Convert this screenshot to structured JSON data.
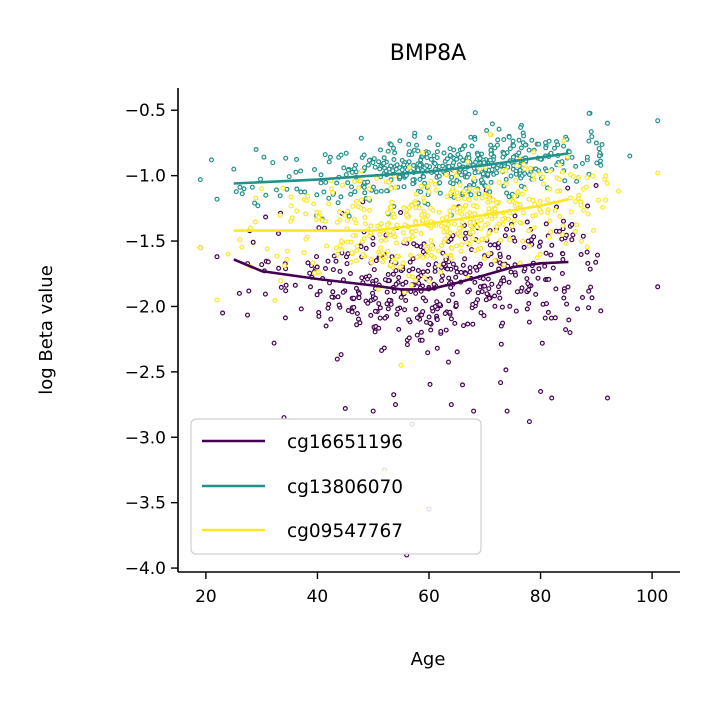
{
  "chart_data": {
    "type": "scatter",
    "title": "BMP8A",
    "xlabel": "Age",
    "ylabel": "log Beta value",
    "xlim": [
      15,
      105
    ],
    "ylim": [
      -4.03,
      -0.33
    ],
    "xticks": [
      20,
      40,
      60,
      80,
      100
    ],
    "xtick_labels": [
      "20",
      "40",
      "60",
      "80",
      "100"
    ],
    "yticks": [
      -4.0,
      -3.5,
      -3.0,
      -2.5,
      -2.0,
      -1.5,
      -1.0,
      -0.5
    ],
    "ytick_labels": [
      "−4.0",
      "−3.5",
      "−3.0",
      "−2.5",
      "−2.0",
      "−1.5",
      "−1.0",
      "−0.5"
    ],
    "grid": false,
    "legend_position": "lower-left",
    "series": [
      {
        "name": "cg16651196",
        "color": "#440154",
        "trend": [
          [
            25,
            -1.64
          ],
          [
            30,
            -1.73
          ],
          [
            40,
            -1.79
          ],
          [
            50,
            -1.84
          ],
          [
            55,
            -1.87
          ],
          [
            60,
            -1.87
          ],
          [
            65,
            -1.82
          ],
          [
            70,
            -1.76
          ],
          [
            75,
            -1.7
          ],
          [
            80,
            -1.67
          ],
          [
            85,
            -1.66
          ]
        ],
        "cloud": {
          "age_mean": 63,
          "age_sd": 14,
          "resid_sd": 0.27,
          "n": 480,
          "seed": 11
        }
      },
      {
        "name": "cg13806070",
        "color": "#21918c",
        "trend": [
          [
            25,
            -1.06
          ],
          [
            40,
            -1.03
          ],
          [
            50,
            -1.0
          ],
          [
            60,
            -0.97
          ],
          [
            70,
            -0.92
          ],
          [
            80,
            -0.86
          ],
          [
            85,
            -0.83
          ]
        ],
        "cloud": {
          "age_mean": 64,
          "age_sd": 14,
          "resid_sd": 0.12,
          "n": 480,
          "seed": 23
        }
      },
      {
        "name": "cg09547767",
        "color": "#fde725",
        "trend": [
          [
            25,
            -1.42
          ],
          [
            40,
            -1.42
          ],
          [
            50,
            -1.42
          ],
          [
            60,
            -1.37
          ],
          [
            70,
            -1.3
          ],
          [
            80,
            -1.23
          ],
          [
            85,
            -1.18
          ]
        ],
        "cloud": {
          "age_mean": 63,
          "age_sd": 14,
          "resid_sd": 0.2,
          "n": 480,
          "seed": 37
        }
      }
    ],
    "outliers": [
      {
        "series": 0,
        "points": [
          [
            19,
            -1.55
          ],
          [
            22,
            -1.62
          ],
          [
            23,
            -2.05
          ],
          [
            26,
            -1.9
          ],
          [
            30,
            -1.68
          ],
          [
            34,
            -2.85
          ],
          [
            45,
            -2.78
          ],
          [
            50,
            -2.8
          ],
          [
            52,
            -3.25
          ],
          [
            54,
            -2.75
          ],
          [
            56,
            -3.9
          ],
          [
            57,
            -2.9
          ],
          [
            60,
            -3.55
          ],
          [
            64,
            -2.75
          ],
          [
            66,
            -2.6
          ],
          [
            68,
            -2.8
          ],
          [
            74,
            -2.8
          ],
          [
            78,
            -2.88
          ],
          [
            80,
            -2.65
          ],
          [
            82,
            -2.7
          ],
          [
            92,
            -2.7
          ],
          [
            101,
            -1.85
          ]
        ]
      },
      {
        "series": 1,
        "points": [
          [
            19,
            -1.03
          ],
          [
            21,
            -0.88
          ],
          [
            22,
            -1.18
          ],
          [
            25,
            -0.95
          ],
          [
            29,
            -0.8
          ],
          [
            32,
            -0.9
          ],
          [
            92,
            -0.6
          ],
          [
            96,
            -0.85
          ],
          [
            101,
            -0.58
          ]
        ]
      },
      {
        "series": 2,
        "points": [
          [
            19,
            -1.55
          ],
          [
            22,
            -1.95
          ],
          [
            24,
            -1.6
          ],
          [
            28,
            -1.4
          ],
          [
            30,
            -1.1
          ],
          [
            52,
            -3.27
          ],
          [
            55,
            -2.45
          ],
          [
            58,
            -3.55
          ],
          [
            94,
            -1.12
          ],
          [
            101,
            -0.98
          ]
        ]
      }
    ]
  }
}
